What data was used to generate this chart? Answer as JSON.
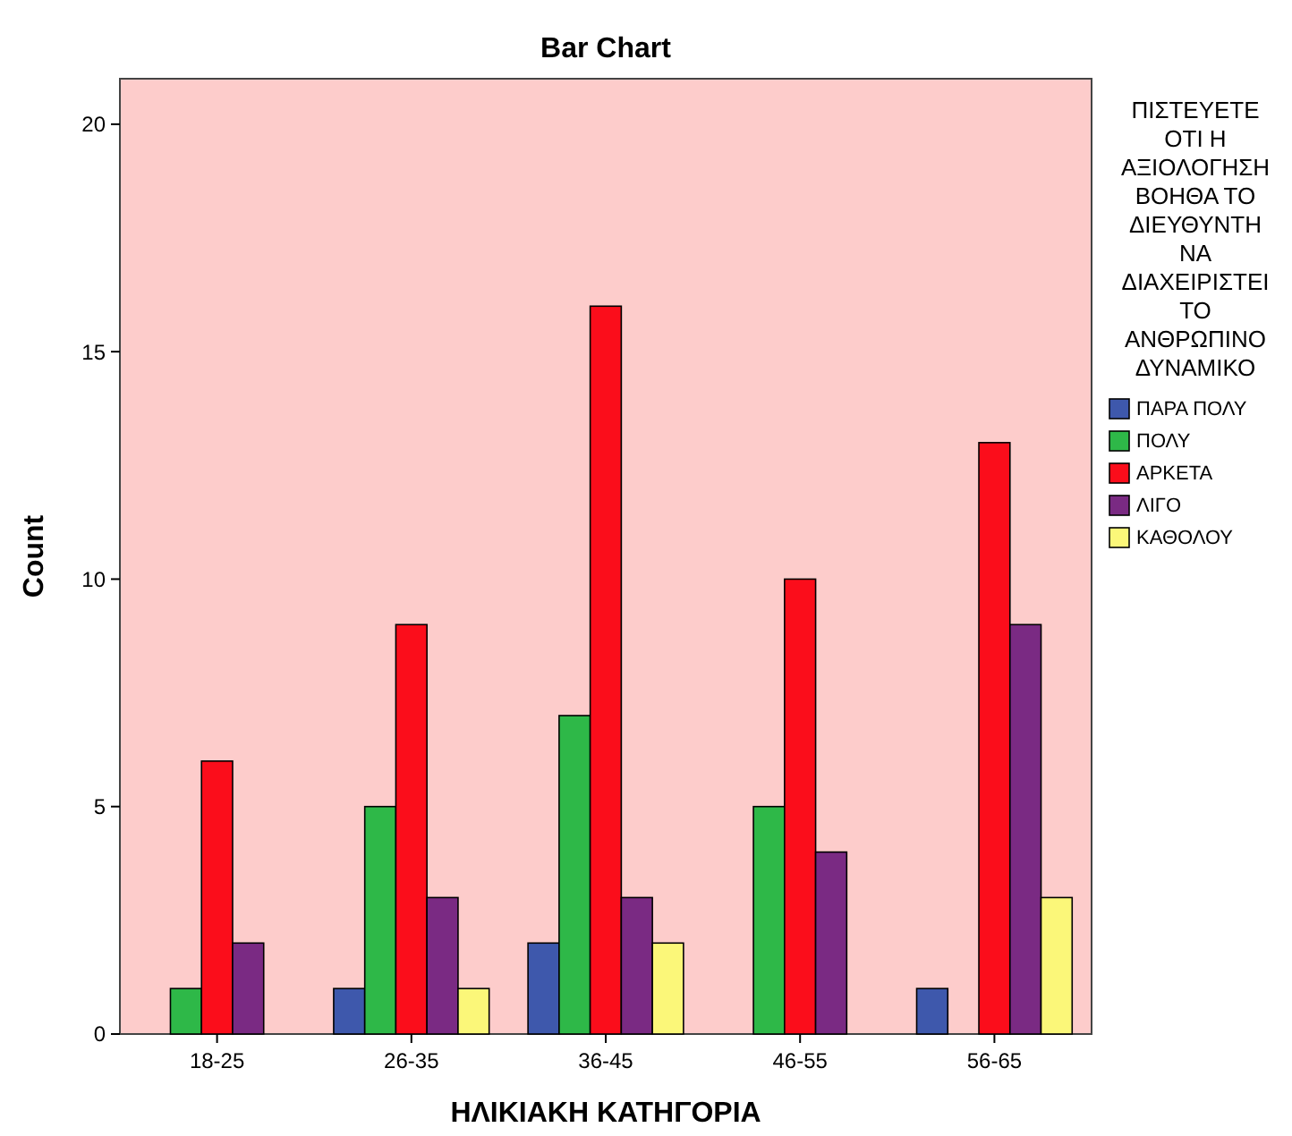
{
  "chart_data": {
    "type": "bar",
    "title": "Bar Chart",
    "xlabel": "ΗΛΙΚΙΑΚΗ ΚΑΤΗΓΟΡΙΑ",
    "ylabel": "Count",
    "legend_title": "ΠΙΣΤΕΥΕΤΕ ΟΤΙ Η ΑΞΙΟΛΟΓΗΣΗ ΒΟΗΘΑ ΤΟ ΔΙΕΥΘΥΝΤΗ ΝΑ ΔΙΑΧΕΙΡΙΣΤΕΙ ΤΟ ΑΝΘΡΩΠΙΝΟ ΔΥΝΑΜΙΚΟ",
    "categories": [
      "18-25",
      "26-35",
      "36-45",
      "46-55",
      "56-65"
    ],
    "series": [
      {
        "name": "ΠΑΡΑ ΠΟΛΥ",
        "color": "#3e58ac",
        "values": [
          null,
          1,
          2,
          null,
          1
        ]
      },
      {
        "name": "ΠΟΛΥ",
        "color": "#2eb848",
        "values": [
          1,
          5,
          7,
          5,
          null
        ]
      },
      {
        "name": "ΑΡΚΕΤΑ",
        "color": "#fb0d1b",
        "values": [
          6,
          9,
          16,
          10,
          13
        ]
      },
      {
        "name": "ΛΙΓΟ",
        "color": "#7a2a83",
        "values": [
          2,
          3,
          3,
          4,
          9
        ]
      },
      {
        "name": "ΚΑΘΟΛΟΥ",
        "color": "#fbf779",
        "values": [
          null,
          1,
          2,
          null,
          3
        ]
      }
    ],
    "ylim": [
      0,
      21
    ],
    "yticks": [
      0,
      5,
      10,
      15,
      20
    ],
    "grid": false,
    "legend": "right"
  }
}
